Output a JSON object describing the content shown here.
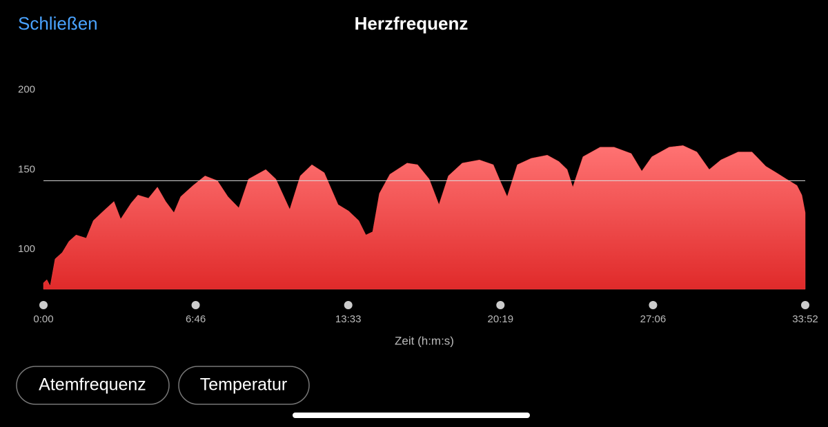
{
  "header": {
    "close": "Schließen",
    "title": "Herzfrequenz"
  },
  "chart_data": {
    "type": "area",
    "x": [
      0,
      9,
      18,
      31,
      50,
      68,
      87,
      114,
      133,
      160,
      188,
      206,
      234,
      252,
      280,
      304,
      326,
      348,
      366,
      399,
      431,
      464,
      492,
      521,
      547,
      593,
      620,
      657,
      685,
      716,
      749,
      786,
      814,
      841,
      860,
      878,
      896,
      924,
      970,
      998,
      1029,
      1055,
      1080,
      1117,
      1163,
      1200,
      1218,
      1237,
      1264,
      1301,
      1344,
      1375,
      1397,
      1412,
      1439,
      1485,
      1522,
      1568,
      1596,
      1623,
      1669,
      1706,
      1743,
      1776,
      1807,
      1853,
      1890,
      1927,
      1955,
      1982,
      2010,
      2023,
      2032
    ],
    "values": [
      86,
      88,
      84,
      101,
      105,
      112,
      116,
      114,
      125,
      131,
      137,
      126,
      136,
      141,
      139,
      146,
      137,
      130,
      140,
      147,
      153,
      150,
      140,
      133,
      151,
      157,
      151,
      132,
      153,
      160,
      155,
      135,
      131,
      125,
      116,
      118,
      142,
      154,
      161,
      160,
      151,
      135,
      153,
      161,
      163,
      160,
      150,
      140,
      160,
      164,
      166,
      162,
      157,
      146,
      165,
      171,
      171,
      167,
      156,
      165,
      171,
      172,
      168,
      157,
      163,
      168,
      168,
      159,
      155,
      151,
      147,
      141,
      130
    ],
    "color": "#f04848",
    "xlim": [
      0,
      2032
    ],
    "xticks": [
      {
        "value": 0,
        "label": "0:00"
      },
      {
        "value": 406,
        "label": "6:46"
      },
      {
        "value": 813,
        "label": "13:33"
      },
      {
        "value": 1219,
        "label": "20:19"
      },
      {
        "value": 1626,
        "label": "27:06"
      },
      {
        "value": 2032,
        "label": "33:52"
      }
    ],
    "ylim": [
      82,
      220
    ],
    "yticks": [
      100,
      150,
      200
    ],
    "reference_line": 150,
    "x_label": "Zeit (h:m:s)"
  },
  "buttons": [
    "Atemfrequenz",
    "Temperatur"
  ]
}
